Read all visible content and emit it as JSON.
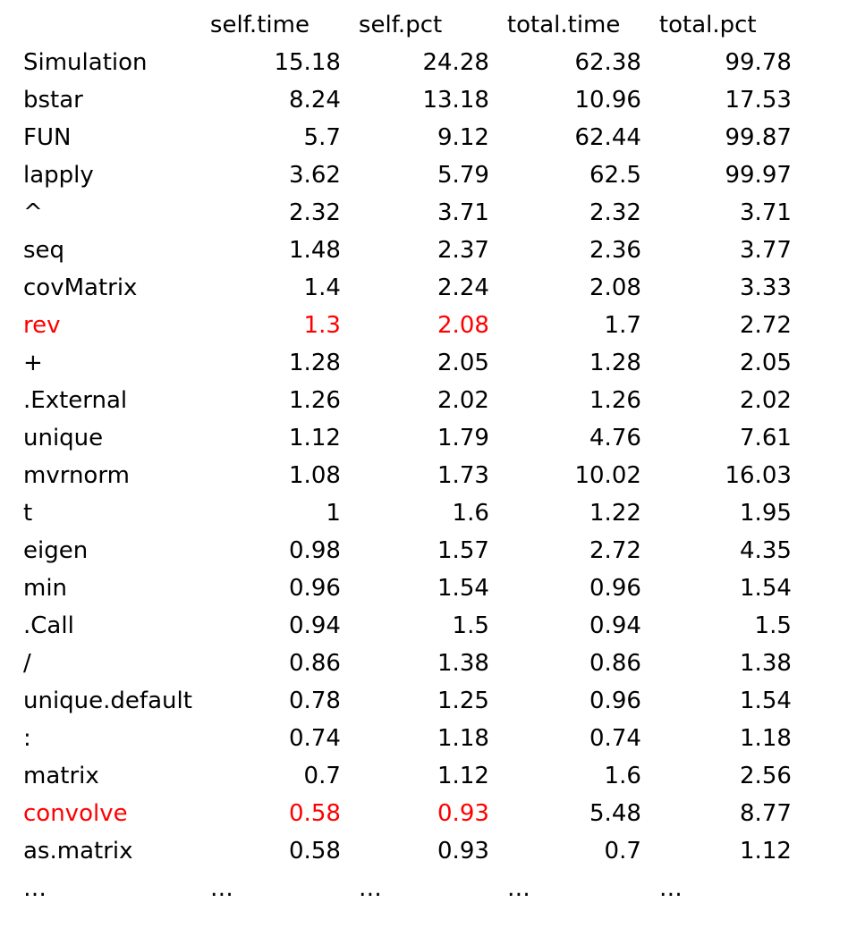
{
  "headers": [
    "",
    "self.time",
    "self.pct",
    "total.time",
    "total.pct"
  ],
  "highlight_color": "#ff0000",
  "rows": [
    {
      "name": "Simulation",
      "self_time": "15.18",
      "self_pct": "24.28",
      "total_time": "62.38",
      "total_pct": "99.78",
      "highlight": false
    },
    {
      "name": "bstar",
      "self_time": "8.24",
      "self_pct": "13.18",
      "total_time": "10.96",
      "total_pct": "17.53",
      "highlight": false
    },
    {
      "name": "FUN",
      "self_time": "5.7",
      "self_pct": "9.12",
      "total_time": "62.44",
      "total_pct": "99.87",
      "highlight": false
    },
    {
      "name": "lapply",
      "self_time": "3.62",
      "self_pct": "5.79",
      "total_time": "62.5",
      "total_pct": "99.97",
      "highlight": false
    },
    {
      "name": "^",
      "self_time": "2.32",
      "self_pct": "3.71",
      "total_time": "2.32",
      "total_pct": "3.71",
      "highlight": false
    },
    {
      "name": "seq",
      "self_time": "1.48",
      "self_pct": "2.37",
      "total_time": "2.36",
      "total_pct": "3.77",
      "highlight": false
    },
    {
      "name": "covMatrix",
      "self_time": "1.4",
      "self_pct": "2.24",
      "total_time": "2.08",
      "total_pct": "3.33",
      "highlight": false
    },
    {
      "name": "rev",
      "self_time": "1.3",
      "self_pct": "2.08",
      "total_time": "1.7",
      "total_pct": "2.72",
      "highlight": true
    },
    {
      "name": "+",
      "self_time": "1.28",
      "self_pct": "2.05",
      "total_time": "1.28",
      "total_pct": "2.05",
      "highlight": false
    },
    {
      "name": ".External",
      "self_time": "1.26",
      "self_pct": "2.02",
      "total_time": "1.26",
      "total_pct": "2.02",
      "highlight": false
    },
    {
      "name": "unique",
      "self_time": "1.12",
      "self_pct": "1.79",
      "total_time": "4.76",
      "total_pct": "7.61",
      "highlight": false
    },
    {
      "name": "mvrnorm",
      "self_time": "1.08",
      "self_pct": "1.73",
      "total_time": "10.02",
      "total_pct": "16.03",
      "highlight": false
    },
    {
      "name": "t",
      "self_time": "1",
      "self_pct": "1.6",
      "total_time": "1.22",
      "total_pct": "1.95",
      "highlight": false
    },
    {
      "name": "eigen",
      "self_time": "0.98",
      "self_pct": "1.57",
      "total_time": "2.72",
      "total_pct": "4.35",
      "highlight": false
    },
    {
      "name": "min",
      "self_time": "0.96",
      "self_pct": "1.54",
      "total_time": "0.96",
      "total_pct": "1.54",
      "highlight": false
    },
    {
      "name": ".Call",
      "self_time": "0.94",
      "self_pct": "1.5",
      "total_time": "0.94",
      "total_pct": "1.5",
      "highlight": false
    },
    {
      "name": "/",
      "self_time": "0.86",
      "self_pct": "1.38",
      "total_time": "0.86",
      "total_pct": "1.38",
      "highlight": false
    },
    {
      "name": "unique.default",
      "self_time": "0.78",
      "self_pct": "1.25",
      "total_time": "0.96",
      "total_pct": "1.54",
      "highlight": false
    },
    {
      "name": ":",
      "self_time": "0.74",
      "self_pct": "1.18",
      "total_time": "0.74",
      "total_pct": "1.18",
      "highlight": false
    },
    {
      "name": "matrix",
      "self_time": "0.7",
      "self_pct": "1.12",
      "total_time": "1.6",
      "total_pct": "2.56",
      "highlight": false
    },
    {
      "name": "convolve",
      "self_time": "0.58",
      "self_pct": "0.93",
      "total_time": "5.48",
      "total_pct": "8.77",
      "highlight": true
    },
    {
      "name": "as.matrix",
      "self_time": "0.58",
      "self_pct": "0.93",
      "total_time": "0.7",
      "total_pct": "1.12",
      "highlight": false
    }
  ],
  "ellipsis_row": [
    "…",
    "…",
    "…",
    "…",
    "…"
  ]
}
